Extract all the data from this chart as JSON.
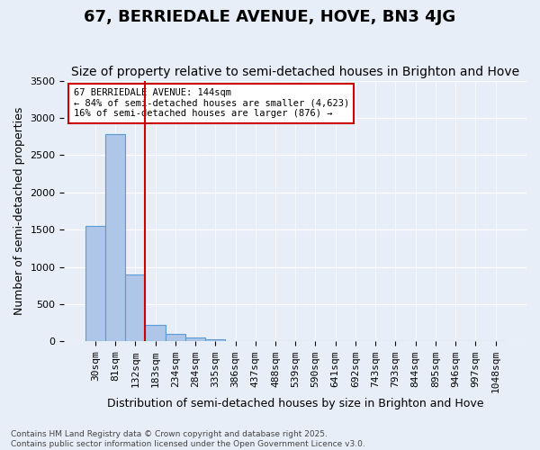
{
  "title": "67, BERRIEDALE AVENUE, HOVE, BN3 4JG",
  "subtitle": "Size of property relative to semi-detached houses in Brighton and Hove",
  "xlabel": "Distribution of semi-detached houses by size in Brighton and Hove",
  "ylabel": "Number of semi-detached properties",
  "bin_labels": [
    "30sqm",
    "81sqm",
    "132sqm",
    "183sqm",
    "234sqm",
    "284sqm",
    "335sqm",
    "386sqm",
    "437sqm",
    "488sqm",
    "539sqm",
    "590sqm",
    "641sqm",
    "692sqm",
    "743sqm",
    "793sqm",
    "844sqm",
    "895sqm",
    "946sqm",
    "997sqm",
    "1048sqm"
  ],
  "bar_values": [
    1550,
    2780,
    900,
    220,
    100,
    50,
    30,
    10,
    0,
    0,
    0,
    0,
    0,
    0,
    0,
    0,
    0,
    0,
    0,
    0,
    0
  ],
  "bar_color": "#aec6e8",
  "bar_edge_color": "#5b9bd5",
  "property_bin_index": 2,
  "annotation_text": "67 BERRIEDALE AVENUE: 144sqm\n← 84% of semi-detached houses are smaller (4,623)\n16% of semi-detached houses are larger (876) →",
  "ylim": [
    0,
    3500
  ],
  "yticks": [
    0,
    500,
    1000,
    1500,
    2000,
    2500,
    3000,
    3500
  ],
  "background_color": "#e8eef8",
  "footer": "Contains HM Land Registry data © Crown copyright and database right 2025.\nContains public sector information licensed under the Open Government Licence v3.0.",
  "red_line_color": "#cc0000",
  "annotation_box_edge_color": "#cc0000",
  "grid_color": "#ffffff",
  "title_fontsize": 13,
  "subtitle_fontsize": 10,
  "tick_fontsize": 8,
  "ylabel_fontsize": 9,
  "xlabel_fontsize": 9,
  "annotation_fontsize": 7.5,
  "footer_fontsize": 6.5
}
